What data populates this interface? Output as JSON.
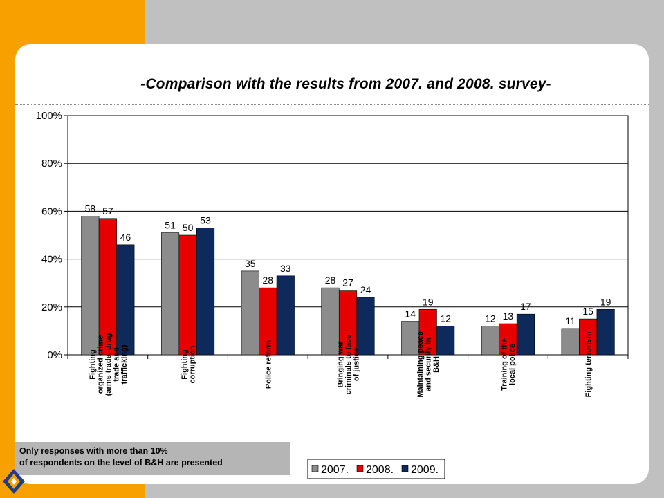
{
  "page": {
    "title": "-Comparison with the results from 2007. and 2008. survey-",
    "note_line1": "Only responses with more than 10%",
    "note_line2": "of respondents on the level of B&H are presented"
  },
  "colors": {
    "background": "#c0c0c0",
    "accent_band": "#f7a000",
    "card": "#ffffff"
  },
  "chart_data": {
    "type": "bar",
    "categories": [
      [
        "Fighting",
        "organized crime",
        "(arms trade, drug",
        "trade and",
        "trafficking)"
      ],
      [
        "Fighting",
        "corruption"
      ],
      [
        "Police reform"
      ],
      [
        "Bringing war",
        "criminals to face",
        "of justice"
      ],
      [
        "Maintaining peace",
        "and security in",
        "B&H"
      ],
      [
        "Training of the",
        "local police"
      ],
      [
        "Fighting terrorism"
      ]
    ],
    "series": [
      {
        "name": "2007.",
        "color": "#8c8c8c",
        "values": [
          58,
          51,
          35,
          28,
          14,
          12,
          11
        ]
      },
      {
        "name": "2008.",
        "color": "#e60000",
        "values": [
          57,
          50,
          28,
          27,
          19,
          13,
          15
        ]
      },
      {
        "name": "2009.",
        "color": "#0d2a5a",
        "values": [
          46,
          53,
          33,
          24,
          12,
          17,
          19
        ]
      }
    ],
    "ylim": [
      0,
      100
    ],
    "yticks": [
      "0%",
      "20%",
      "40%",
      "60%",
      "80%",
      "100%"
    ],
    "grid": true,
    "legend_position": "bottom-right"
  }
}
